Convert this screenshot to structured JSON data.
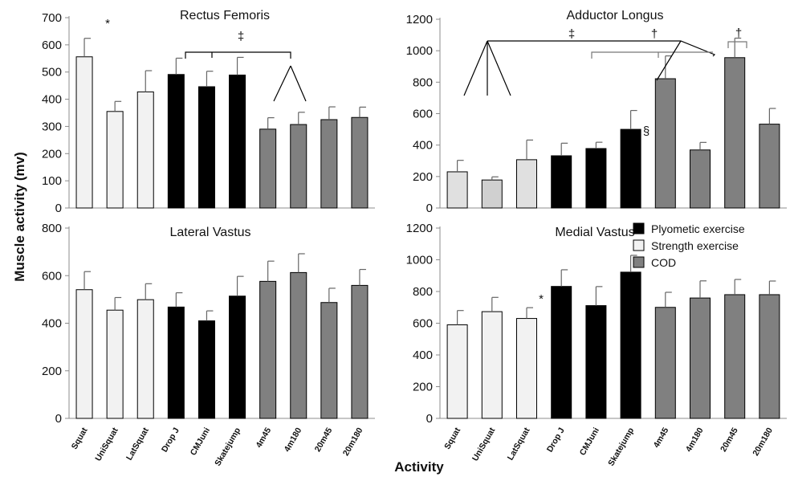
{
  "figure": {
    "ylabel": "Muscle activity (mv)",
    "xlabel": "Activity"
  },
  "legend": [
    {
      "label": "Plyometic exercise",
      "color": "#000000"
    },
    {
      "label": "Strength exercise",
      "color": "#f2f2f2"
    },
    {
      "label": "COD",
      "color": "#808080"
    }
  ],
  "chart_data": [
    {
      "type": "bar",
      "title": "Rectus Femoris",
      "categories": [
        "Squat",
        "UniSquat",
        "LatSquat",
        "Drop J",
        "CMJuni",
        "Skatejump",
        "4m45",
        "4m180",
        "20m45",
        "20m180"
      ],
      "values": [
        556,
        355,
        427,
        491,
        446,
        489,
        290,
        307,
        325,
        333
      ],
      "errors": [
        68,
        37,
        78,
        60,
        57,
        65,
        42,
        45,
        47,
        38
      ],
      "groups": [
        "strength",
        "strength",
        "strength",
        "plyo",
        "plyo",
        "plyo",
        "cod",
        "cod",
        "cod",
        "cod"
      ],
      "ylim": [
        0,
        700
      ],
      "yticks": [
        0,
        100,
        200,
        300,
        400,
        500,
        600,
        700
      ],
      "annotations": [
        {
          "text": "*",
          "category": "Squat"
        },
        {
          "text": "‡",
          "category": "CMJuni"
        }
      ]
    },
    {
      "type": "bar",
      "title": "Adductor Longus",
      "categories": [
        "Squat",
        "UniSquat",
        "LatSquat",
        "Drop J",
        "CMJuni",
        "Skatejump",
        "4m45",
        "4m180",
        "20m45",
        "20m180"
      ],
      "values": [
        230,
        178,
        307,
        332,
        378,
        500,
        822,
        369,
        956,
        533
      ],
      "errors": [
        73,
        20,
        125,
        80,
        40,
        120,
        145,
        48,
        124,
        100
      ],
      "groups": [
        "strength",
        "strength",
        "strength",
        "plyo",
        "plyo",
        "plyo",
        "cod",
        "cod",
        "cod",
        "cod"
      ],
      "ylim": [
        0,
        1200
      ],
      "yticks": [
        0,
        200,
        400,
        600,
        800,
        1000,
        1200
      ],
      "annotations": [
        {
          "text": "‡",
          "category": "LatSquat"
        },
        {
          "text": "†",
          "category": "4m45"
        },
        {
          "text": "§",
          "category": "4m180"
        },
        {
          "text": "†",
          "category": "20m45"
        }
      ]
    },
    {
      "type": "bar",
      "title": "Lateral Vastus",
      "categories": [
        "Squat",
        "UniSquat",
        "LatSquat",
        "Drop J",
        "CMJuni",
        "Skatejump",
        "4m45",
        "4m180",
        "20m45",
        "20m180"
      ],
      "values": [
        541,
        455,
        499,
        468,
        410,
        514,
        576,
        613,
        487,
        559
      ],
      "errors": [
        76,
        53,
        67,
        60,
        42,
        83,
        85,
        79,
        60,
        67
      ],
      "groups": [
        "strength",
        "strength",
        "strength",
        "plyo",
        "plyo",
        "plyo",
        "cod",
        "cod",
        "cod",
        "cod"
      ],
      "ylim": [
        0,
        800
      ],
      "yticks": [
        0,
        200,
        400,
        600,
        800
      ]
    },
    {
      "type": "bar",
      "title": "Medial Vastus",
      "categories": [
        "Squat",
        "UniSquat",
        "LatSquat",
        "Drop J",
        "CMJuni",
        "Skatejump",
        "4m45",
        "4m180",
        "20m45",
        "20m180"
      ],
      "values": [
        590,
        673,
        630,
        832,
        711,
        922,
        700,
        759,
        780,
        780
      ],
      "errors": [
        90,
        90,
        68,
        105,
        120,
        106,
        95,
        108,
        96,
        86
      ],
      "groups": [
        "strength",
        "strength",
        "strength",
        "plyo",
        "plyo",
        "plyo",
        "cod",
        "cod",
        "cod",
        "cod"
      ],
      "ylim": [
        0,
        1200
      ],
      "yticks": [
        0,
        200,
        400,
        600,
        800,
        1000,
        1200
      ],
      "annotations": [
        {
          "text": "*",
          "category": "LatSquat"
        }
      ]
    }
  ],
  "colors": {
    "plyo": "#000000",
    "strength": "#f2f2f2",
    "cod": "#808080",
    "strength_adductor": "#e0e0e0",
    "axis": "#8c8c8c"
  }
}
